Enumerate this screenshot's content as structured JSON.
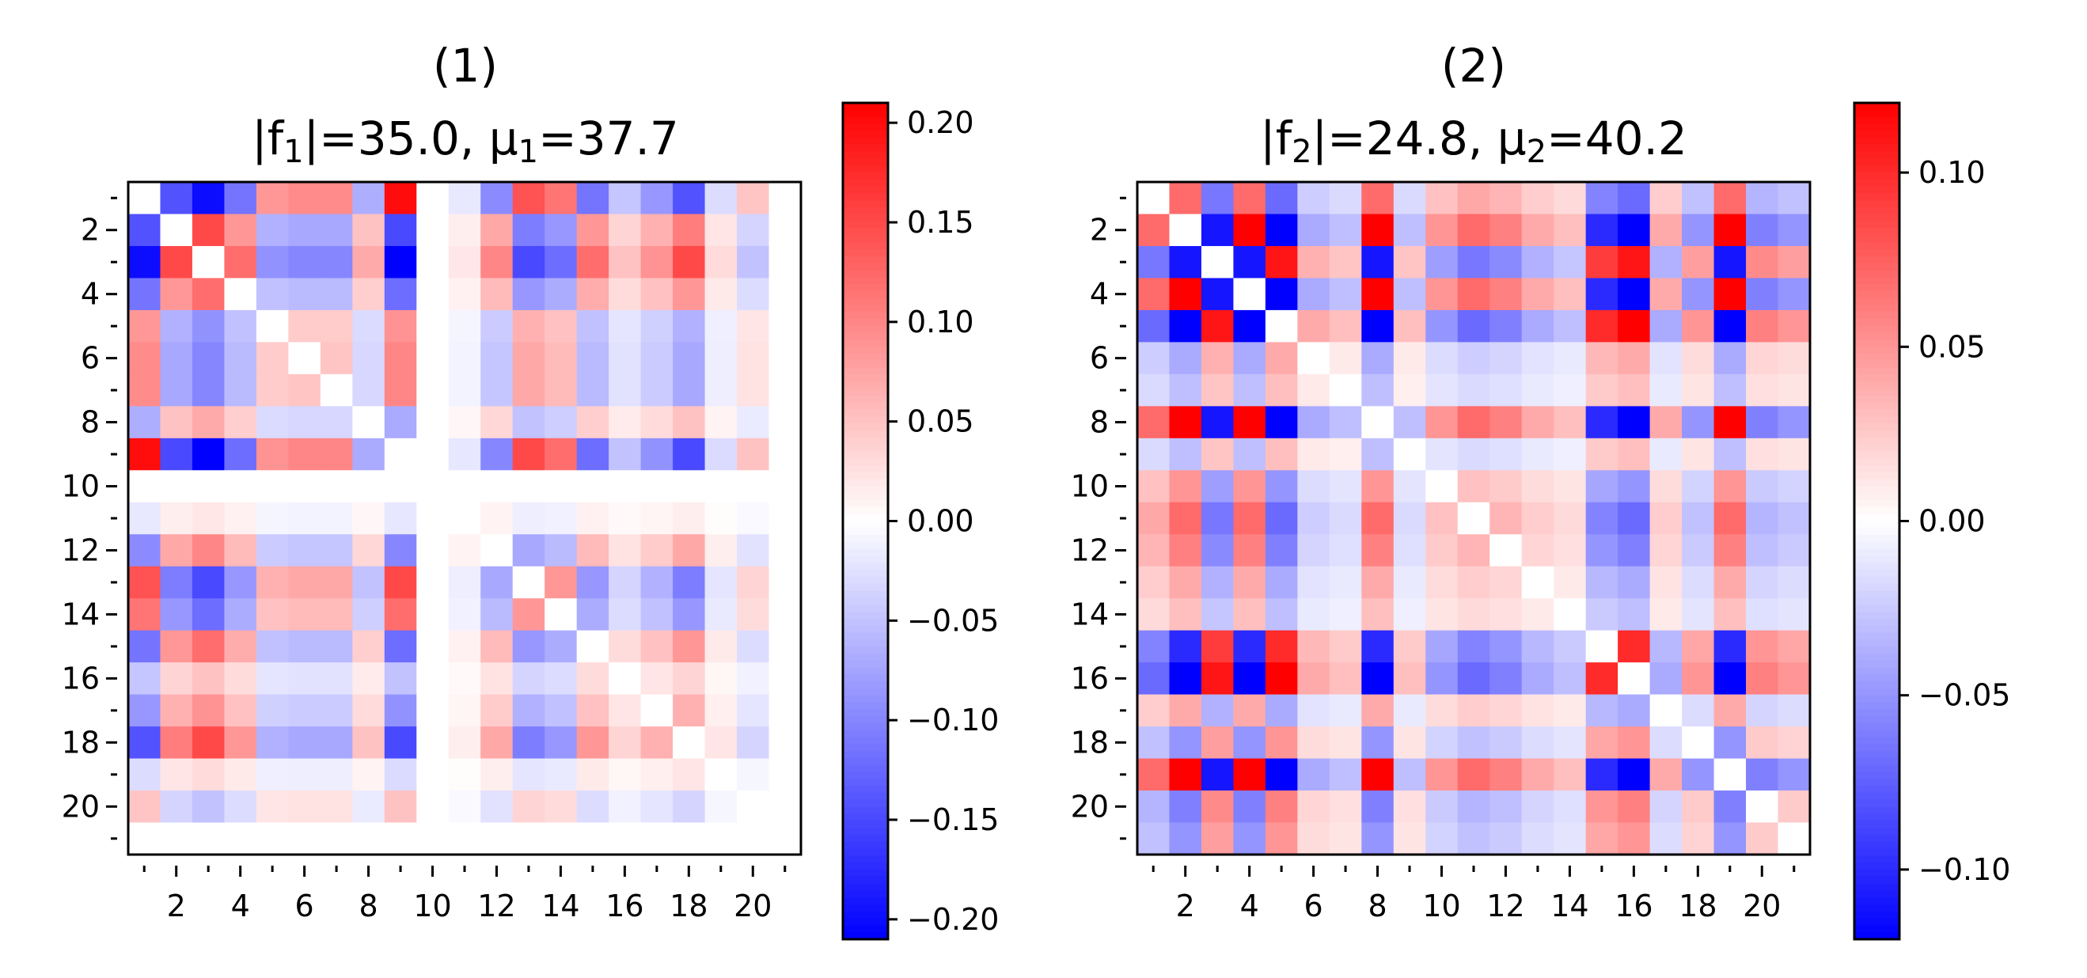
{
  "chart_data": [
    {
      "type": "heatmap",
      "panel_label": "(1)",
      "title_prefix": "|f",
      "subscript": "1",
      "title_mid": "|=35.0, μ",
      "title_suffix": "=37.7",
      "norm_value": 35.0,
      "mu": 37.7,
      "n": 21,
      "colormap": "bwr",
      "vmin": -0.21,
      "vmax": 0.21,
      "xticks": [
        "2",
        "4",
        "6",
        "8",
        "10",
        "12",
        "14",
        "16",
        "18",
        "20"
      ],
      "yticks": [
        "2",
        "4",
        "6",
        "8",
        "10",
        "12",
        "14",
        "16",
        "18",
        "20"
      ],
      "colorbar_ticks": [
        "0.20",
        "0.15",
        "0.10",
        "0.05",
        "0.00",
        "−0.05",
        "−0.10",
        "−0.15",
        "−0.20"
      ],
      "colorbar_tick_values": [
        0.2,
        0.15,
        0.1,
        0.05,
        0.0,
        -0.05,
        -0.1,
        -0.15,
        -0.2
      ],
      "vector": [
        0.2,
        -0.15,
        -0.21,
        -0.12,
        0.09,
        0.1,
        0.1,
        -0.07,
        0.21,
        0.0,
        -0.02,
        -0.1,
        0.15,
        0.12,
        -0.12,
        -0.05,
        -0.09,
        -0.15,
        -0.03,
        0.05,
        0.0
      ],
      "scale": 0.21
    },
    {
      "type": "heatmap",
      "panel_label": "(2)",
      "title_prefix": "|f",
      "subscript": "2",
      "title_mid": "|=24.8, μ",
      "title_suffix": "=40.2",
      "norm_value": 24.8,
      "mu": 40.2,
      "n": 21,
      "colormap": "bwr",
      "vmin": -0.12,
      "vmax": 0.12,
      "xticks": [
        "2",
        "4",
        "6",
        "8",
        "10",
        "12",
        "14",
        "16",
        "18",
        "20"
      ],
      "yticks": [
        "2",
        "4",
        "6",
        "8",
        "10",
        "12",
        "14",
        "16",
        "18",
        "20"
      ],
      "colorbar_ticks": [
        "0.10",
        "0.05",
        "0.00",
        "−0.05",
        "−0.10"
      ],
      "colorbar_tick_values": [
        0.1,
        0.05,
        0.0,
        -0.05,
        -0.1
      ],
      "vector": [
        0.07,
        0.12,
        -0.11,
        0.12,
        -0.12,
        -0.04,
        -0.03,
        0.12,
        -0.03,
        0.05,
        0.07,
        0.06,
        0.04,
        0.03,
        -0.1,
        -0.12,
        0.04,
        -0.05,
        0.12,
        -0.06,
        -0.05
      ],
      "scale": 0.12
    }
  ]
}
